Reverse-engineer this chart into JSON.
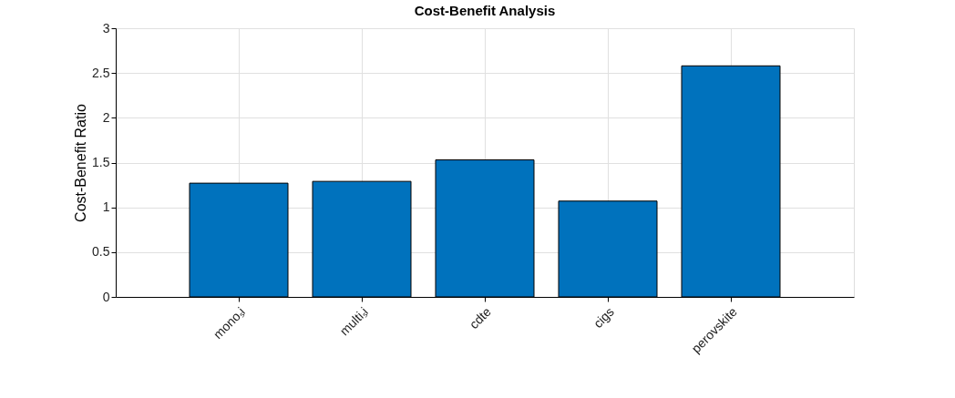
{
  "chart_data": {
    "type": "bar",
    "title": "Cost-Benefit Analysis",
    "ylabel": "Cost-Benefit Ratio",
    "categories": [
      "monoₛi",
      "multiₛi",
      "cdte",
      "cigs",
      "perovskite"
    ],
    "values": [
      1.27,
      1.29,
      1.53,
      1.07,
      2.58
    ],
    "color": "#0072bd",
    "ylim": [
      0,
      3
    ],
    "yticks": [
      0,
      0.5,
      1,
      1.5,
      2,
      2.5,
      3
    ],
    "grid": true
  }
}
